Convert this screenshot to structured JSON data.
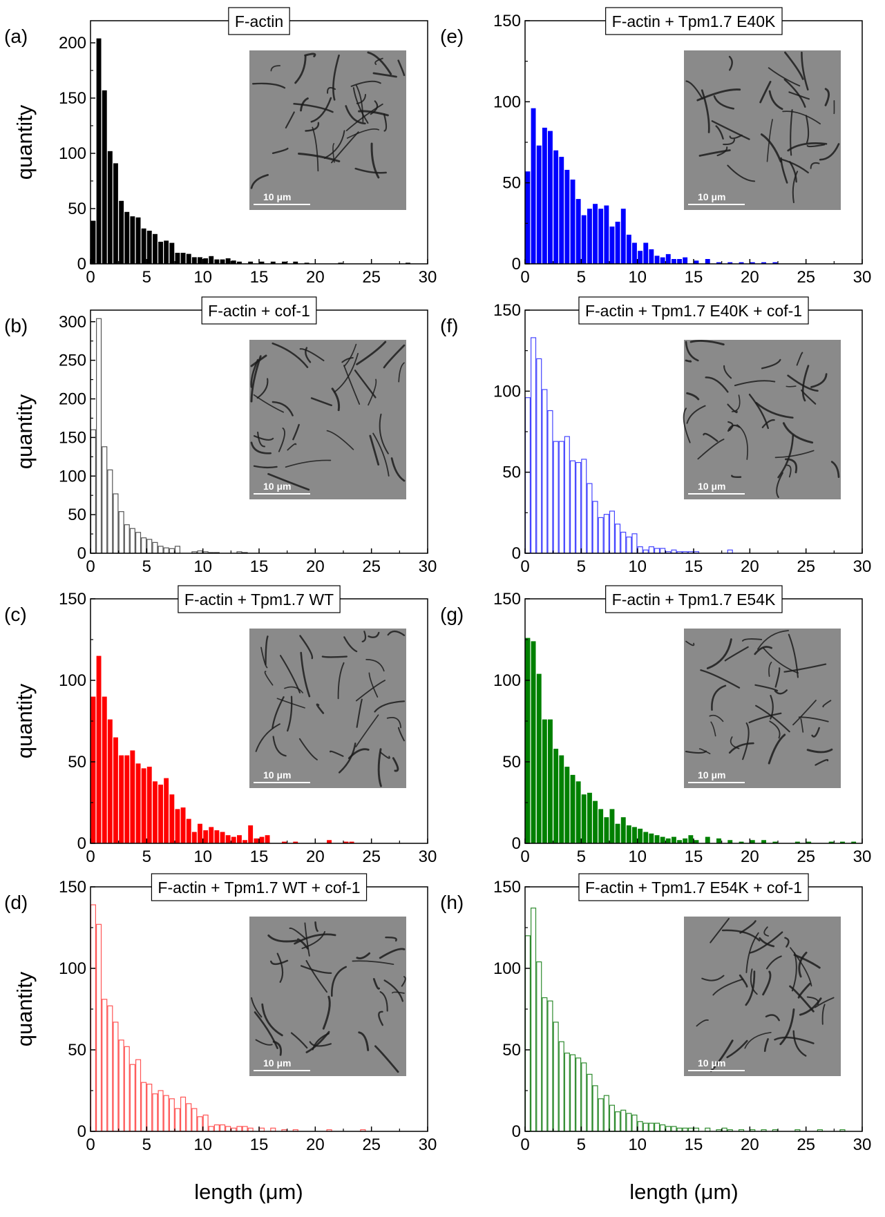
{
  "figure": {
    "xlabel": "length (μm)",
    "ylabel": "quantity",
    "scale_bar_label": "10 μm"
  },
  "chart_data": [
    {
      "panel": "(a)",
      "title": "F-actin",
      "type": "bar",
      "style": "filled",
      "color": "#000000",
      "xlabel": "length (μm)",
      "ylabel": "quantity",
      "xlim": [
        0,
        30
      ],
      "ylim": [
        0,
        220
      ],
      "xticks": [
        0,
        5,
        10,
        15,
        20,
        25,
        30
      ],
      "yticks": [
        0,
        50,
        100,
        150,
        200
      ],
      "bin_width": 0.5,
      "bin_start": [
        0,
        0.5,
        1,
        1.5,
        2,
        2.5,
        3,
        3.5,
        4,
        4.5,
        5,
        5.5,
        6,
        6.5,
        7,
        7.5,
        8,
        8.5,
        9,
        9.5,
        10,
        10.5,
        11,
        11.5,
        12,
        12.5,
        13,
        14,
        15,
        16,
        17,
        18,
        19,
        22,
        28
      ],
      "values": [
        39,
        204,
        157,
        102,
        91,
        57,
        47,
        43,
        42,
        32,
        30,
        27,
        20,
        21,
        19,
        10,
        10,
        9,
        6,
        6,
        5,
        7,
        4,
        4,
        5,
        3,
        2,
        2,
        2,
        2,
        2,
        2,
        1,
        1,
        1
      ]
    },
    {
      "panel": "(b)",
      "title": "F-actin + cof-1",
      "type": "bar",
      "style": "outline",
      "color": "#555555",
      "xlabel": "length (μm)",
      "ylabel": "quantity",
      "xlim": [
        0,
        30
      ],
      "ylim": [
        0,
        315
      ],
      "xticks": [
        0,
        5,
        10,
        15,
        20,
        25,
        30
      ],
      "yticks": [
        0,
        50,
        100,
        150,
        200,
        250,
        300
      ],
      "bin_width": 0.5,
      "bin_start": [
        0,
        0.5,
        1,
        1.5,
        2,
        2.5,
        3,
        3.5,
        4,
        4.5,
        5,
        5.5,
        6,
        6.5,
        7,
        7.5,
        9,
        9.5,
        10,
        10.5,
        11,
        13,
        13.5
      ],
      "values": [
        160,
        304,
        138,
        108,
        77,
        54,
        37,
        32,
        27,
        20,
        18,
        14,
        9,
        7,
        6,
        9,
        2,
        3,
        2,
        1,
        1,
        2,
        1
      ]
    },
    {
      "panel": "(c)",
      "title": "F-actin + Tpm1.7 WT",
      "type": "bar",
      "style": "filled",
      "color": "#ff0000",
      "xlabel": "length (μm)",
      "ylabel": "quantity",
      "xlim": [
        0,
        30
      ],
      "ylim": [
        0,
        150
      ],
      "xticks": [
        0,
        5,
        10,
        15,
        20,
        25,
        30
      ],
      "yticks": [
        0,
        50,
        100,
        150
      ],
      "bin_width": 0.5,
      "bin_start": [
        0,
        0.5,
        1,
        1.5,
        2,
        2.5,
        3,
        3.5,
        4,
        4.5,
        5,
        5.5,
        6,
        6.5,
        7,
        7.5,
        8,
        8.5,
        9,
        9.5,
        10,
        10.5,
        11,
        11.5,
        12,
        12.5,
        13,
        13.5,
        14,
        14.5,
        15,
        15.5,
        17,
        18,
        21,
        22.5,
        23
      ],
      "values": [
        90,
        115,
        90,
        76,
        65,
        54,
        54,
        57,
        49,
        46,
        47,
        38,
        36,
        40,
        30,
        21,
        22,
        15,
        7,
        12,
        8,
        10,
        8,
        7,
        5,
        4,
        5,
        2,
        11,
        3,
        4,
        5,
        1,
        1,
        2,
        1,
        1
      ]
    },
    {
      "panel": "(d)",
      "title": "F-actin + Tpm1.7 WT + cof-1",
      "type": "bar",
      "style": "outline",
      "color": "#ff5555",
      "xlabel": "length (μm)",
      "ylabel": "quantity",
      "xlim": [
        0,
        30
      ],
      "ylim": [
        0,
        150
      ],
      "xticks": [
        0,
        5,
        10,
        15,
        20,
        25,
        30
      ],
      "yticks": [
        0,
        50,
        100,
        150
      ],
      "bin_width": 0.5,
      "bin_start": [
        0,
        0.5,
        1,
        1.5,
        2,
        2.5,
        3,
        3.5,
        4,
        4.5,
        5,
        5.5,
        6,
        6.5,
        7,
        7.5,
        8,
        8.5,
        9,
        9.5,
        10,
        10.5,
        11,
        11.5,
        12,
        12.5,
        13,
        13.5,
        14,
        15,
        16,
        17,
        18,
        21,
        24
      ],
      "values": [
        139,
        127,
        81,
        77,
        67,
        56,
        52,
        41,
        44,
        30,
        29,
        23,
        25,
        22,
        20,
        14,
        21,
        17,
        14,
        9,
        10,
        3,
        4,
        4,
        3,
        2,
        3,
        3,
        2,
        2,
        2,
        1,
        1,
        1,
        1
      ]
    },
    {
      "panel": "(e)",
      "title": "F-actin + Tpm1.7 E40K",
      "type": "bar",
      "style": "filled",
      "color": "#0000ff",
      "xlabel": "length (μm)",
      "ylabel": "quantity",
      "xlim": [
        0,
        30
      ],
      "ylim": [
        0,
        150
      ],
      "xticks": [
        0,
        5,
        10,
        15,
        20,
        25,
        30
      ],
      "yticks": [
        0,
        50,
        100,
        150
      ],
      "bin_width": 0.5,
      "bin_start": [
        0,
        0.5,
        1,
        1.5,
        2,
        2.5,
        3,
        3.5,
        4,
        4.5,
        5,
        5.5,
        6,
        6.5,
        7,
        7.5,
        8,
        8.5,
        9,
        9.5,
        10,
        10.5,
        11,
        11.5,
        12,
        12.5,
        13,
        13.5,
        14,
        15,
        16,
        17,
        18,
        19,
        20,
        21,
        22
      ],
      "values": [
        57,
        96,
        73,
        84,
        82,
        70,
        66,
        58,
        52,
        40,
        30,
        34,
        37,
        34,
        36,
        23,
        26,
        34,
        18,
        13,
        8,
        13,
        9,
        5,
        4,
        6,
        3,
        3,
        4,
        2,
        3,
        1,
        1,
        1,
        1,
        1,
        1
      ]
    },
    {
      "panel": "(f)",
      "title": "F-actin + Tpm1.7 E40K + cof-1",
      "type": "bar",
      "style": "outline",
      "color": "#4444ff",
      "xlabel": "length (μm)",
      "ylabel": "quantity",
      "xlim": [
        0,
        30
      ],
      "ylim": [
        0,
        150
      ],
      "xticks": [
        0,
        5,
        10,
        15,
        20,
        25,
        30
      ],
      "yticks": [
        0,
        50,
        100,
        150
      ],
      "bin_width": 0.5,
      "bin_start": [
        0,
        0.5,
        1,
        1.5,
        2,
        2.5,
        3,
        3.5,
        4,
        4.5,
        5,
        5.5,
        6,
        6.5,
        7,
        7.5,
        8,
        8.5,
        9,
        9.5,
        10,
        10.5,
        11,
        11.5,
        12,
        12.5,
        13,
        13.5,
        14,
        14.5,
        15,
        18
      ],
      "values": [
        96,
        133,
        120,
        101,
        88,
        69,
        69,
        72,
        57,
        56,
        58,
        43,
        32,
        22,
        24,
        26,
        18,
        13,
        10,
        12,
        4,
        2,
        4,
        3,
        3,
        1,
        2,
        1,
        1,
        1,
        1,
        2
      ]
    },
    {
      "panel": "(g)",
      "title": "F-actin + Tpm1.7 E54K",
      "type": "bar",
      "style": "filled",
      "color": "#008000",
      "xlabel": "length (μm)",
      "ylabel": "quantity",
      "xlim": [
        0,
        30
      ],
      "ylim": [
        0,
        150
      ],
      "xticks": [
        0,
        5,
        10,
        15,
        20,
        25,
        30
      ],
      "yticks": [
        0,
        50,
        100,
        150
      ],
      "bin_width": 0.5,
      "bin_start": [
        0,
        0.5,
        1,
        1.5,
        2,
        2.5,
        3,
        3.5,
        4,
        4.5,
        5,
        5.5,
        6,
        6.5,
        7,
        7.5,
        8,
        8.5,
        9,
        9.5,
        10,
        10.5,
        11,
        11.5,
        12,
        12.5,
        13,
        13.5,
        14,
        14.5,
        15,
        16,
        17,
        18,
        19,
        20,
        21,
        22,
        24,
        25,
        27,
        28,
        29
      ],
      "values": [
        126,
        124,
        104,
        76,
        76,
        58,
        54,
        47,
        42,
        38,
        30,
        31,
        26,
        21,
        16,
        21,
        12,
        16,
        11,
        10,
        9,
        7,
        6,
        5,
        4,
        3,
        4,
        2,
        3,
        5,
        2,
        4,
        3,
        2,
        1,
        2,
        2,
        1,
        1,
        1,
        1,
        1,
        1
      ]
    },
    {
      "panel": "(h)",
      "title": "F-actin + Tpm1.7 E54K + cof-1",
      "type": "bar",
      "style": "outline",
      "color": "#2e8b2e",
      "xlabel": "length (μm)",
      "ylabel": "quantity",
      "xlim": [
        0,
        30
      ],
      "ylim": [
        0,
        150
      ],
      "xticks": [
        0,
        5,
        10,
        15,
        20,
        25,
        30
      ],
      "yticks": [
        0,
        50,
        100,
        150
      ],
      "bin_width": 0.5,
      "bin_start": [
        0,
        0.5,
        1,
        1.5,
        2,
        2.5,
        3,
        3.5,
        4,
        4.5,
        5,
        5.5,
        6,
        6.5,
        7,
        7.5,
        8,
        8.5,
        9,
        9.5,
        10,
        10.5,
        11,
        11.5,
        12,
        12.5,
        13,
        13.5,
        14,
        14.5,
        15,
        16,
        17,
        17.5,
        18,
        19,
        20,
        21,
        22,
        24,
        26,
        28
      ],
      "values": [
        120,
        137,
        104,
        82,
        80,
        67,
        55,
        48,
        47,
        45,
        42,
        35,
        28,
        20,
        22,
        16,
        12,
        13,
        11,
        10,
        6,
        5,
        5,
        5,
        4,
        3,
        3,
        2,
        2,
        2,
        2,
        2,
        1,
        2,
        1,
        1,
        1,
        1,
        1,
        1,
        1,
        1
      ]
    }
  ]
}
